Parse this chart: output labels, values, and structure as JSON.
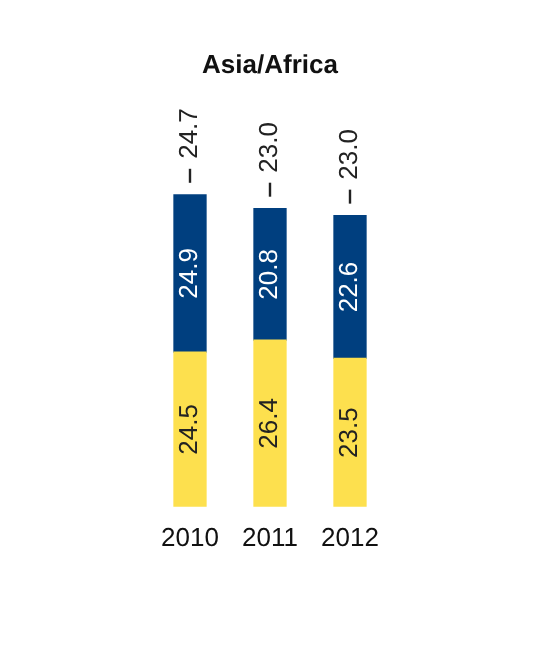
{
  "chart_data": {
    "type": "bar",
    "title": "Asia/Africa",
    "categories": [
      "2010",
      "2011",
      "2012"
    ],
    "stacked": true,
    "data_labels": true,
    "legend": false,
    "grid": false,
    "tick_labels": "x",
    "series": [
      {
        "color": "#fde04e",
        "values": [
          24.5,
          26.4,
          23.5
        ]
      },
      {
        "color": "#003f7f",
        "values": [
          24.9,
          20.8,
          22.6
        ]
      }
    ],
    "annotations": [
      {
        "text": "24.7",
        "x": "2010"
      },
      {
        "text": "23.0",
        "x": "2011"
      },
      {
        "text": "23.0",
        "x": "2012"
      }
    ]
  }
}
